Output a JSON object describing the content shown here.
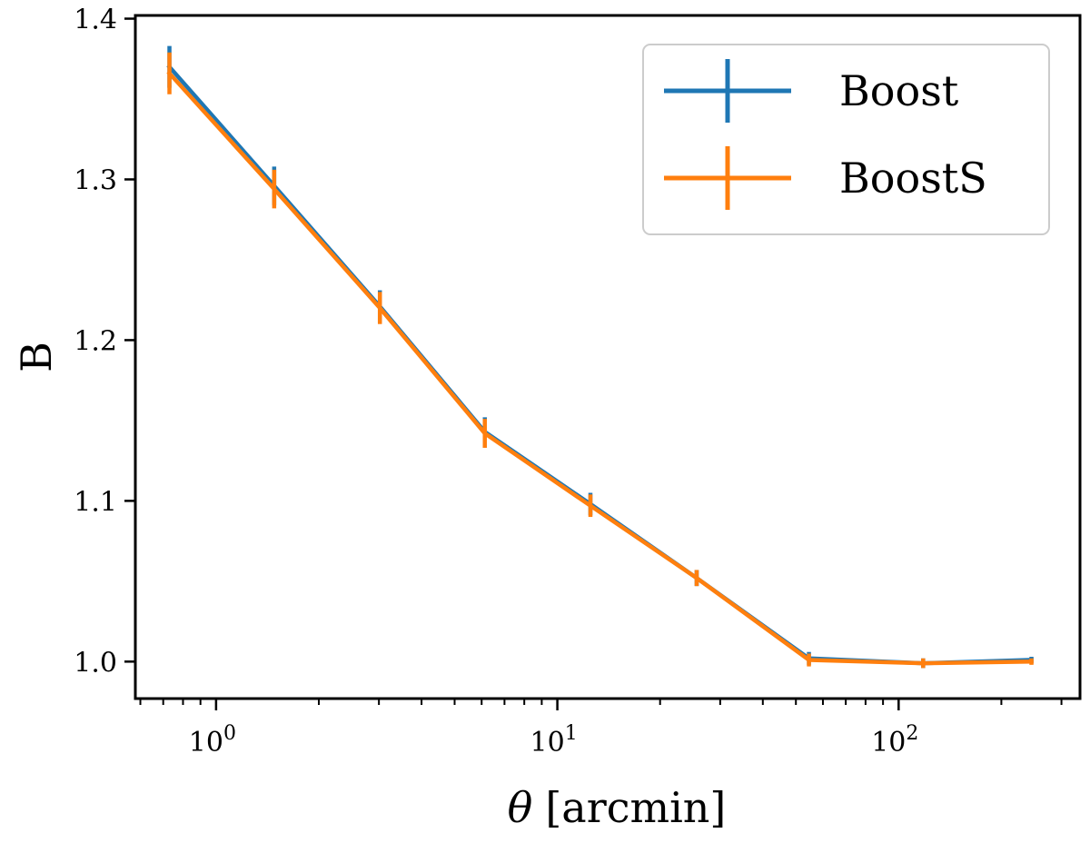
{
  "chart_data": {
    "type": "line",
    "title": "",
    "xlabel_symbol": "θ",
    "xlabel_unit": "[arcmin]",
    "ylabel": "B",
    "xscale": "log",
    "xlim": [
      0.58,
      340
    ],
    "ylim": [
      0.977,
      1.402
    ],
    "grid": false,
    "legend_position": "top-right",
    "x_tick_labels": [
      {
        "base": "10",
        "exp": "0",
        "value": 1
      },
      {
        "base": "10",
        "exp": "1",
        "value": 10
      },
      {
        "base": "10",
        "exp": "2",
        "value": 100
      }
    ],
    "y_ticks": [
      1.0,
      1.1,
      1.2,
      1.3,
      1.4
    ],
    "y_tick_labels": [
      "1.0",
      "1.1",
      "1.2",
      "1.3",
      "1.4"
    ],
    "series": [
      {
        "name": "Boost",
        "color": "#1f77b4",
        "x": [
          0.73,
          1.48,
          3.02,
          6.13,
          12.5,
          25.6,
          54.6,
          118,
          245
        ],
        "y": [
          1.37,
          1.296,
          1.221,
          1.143,
          1.098,
          1.052,
          1.002,
          0.999,
          1.001
        ],
        "yerr": [
          0.013,
          0.012,
          0.01,
          0.009,
          0.007,
          0.005,
          0.004,
          0.003,
          0.002
        ]
      },
      {
        "name": "BoostS",
        "color": "#ff7f0e",
        "x": [
          0.73,
          1.48,
          3.02,
          6.13,
          12.5,
          25.6,
          54.6,
          118,
          245
        ],
        "y": [
          1.366,
          1.294,
          1.22,
          1.142,
          1.097,
          1.052,
          1.001,
          0.999,
          1.0
        ],
        "yerr": [
          0.013,
          0.012,
          0.01,
          0.009,
          0.007,
          0.005,
          0.004,
          0.003,
          0.002
        ]
      }
    ]
  }
}
